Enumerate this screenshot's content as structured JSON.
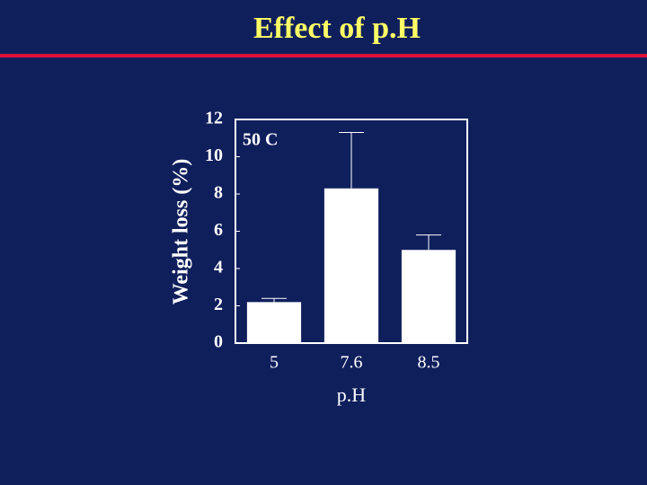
{
  "chart_data": {
    "type": "bar",
    "title": "Effect of p.H",
    "annotation": "50 C",
    "x_label": "p.H",
    "y_label": "Weight loss (%)",
    "categories": [
      "5",
      "7.6",
      "8.5"
    ],
    "values": [
      2.2,
      8.3,
      5.0
    ],
    "errors": [
      0.2,
      3.0,
      0.8
    ],
    "color": "#ffffff",
    "ylim": [
      0,
      12
    ],
    "yticks": [
      0,
      2,
      4,
      6,
      8,
      10,
      12
    ],
    "grid": false
  }
}
